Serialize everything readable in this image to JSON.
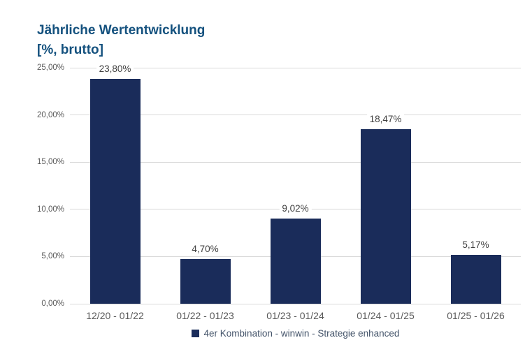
{
  "title": {
    "line1": "Jährliche Wertentwicklung",
    "line2": "[%, brutto]"
  },
  "chart_data": {
    "type": "bar",
    "categories": [
      "12/20 - 01/22",
      "01/22 - 01/23",
      "01/23 - 01/24",
      "01/24 - 01/25",
      "01/25 - 01/26"
    ],
    "series": [
      {
        "name": "4er Kombination - winwin - Strategie enhanced",
        "values": [
          23.8,
          4.7,
          9.02,
          18.47,
          5.17
        ],
        "value_labels": [
          "23,80%",
          "4,70%",
          "9,02%",
          "18,47%",
          "5,17%"
        ]
      }
    ],
    "title": "Jährliche Wertentwicklung [%, brutto]",
    "xlabel": "",
    "ylabel": "",
    "ylim": [
      0,
      25
    ],
    "y_ticks": [
      {
        "value": 25,
        "label": "25,00%"
      },
      {
        "value": 20,
        "label": "20,00%"
      },
      {
        "value": 15,
        "label": "15,00%"
      },
      {
        "value": 10,
        "label": "10,00%"
      },
      {
        "value": 5,
        "label": "5,00%"
      },
      {
        "value": 0,
        "label": "0,00%"
      }
    ],
    "grid": true,
    "legend_position": "bottom"
  },
  "colors": {
    "bar": "#1A2C5A",
    "title": "#14517E",
    "gridline": "#D9D9D9",
    "tick_label": "#595959",
    "value_label": "#404040",
    "legend_text": "#44546A",
    "background": "#FFFFFF"
  }
}
